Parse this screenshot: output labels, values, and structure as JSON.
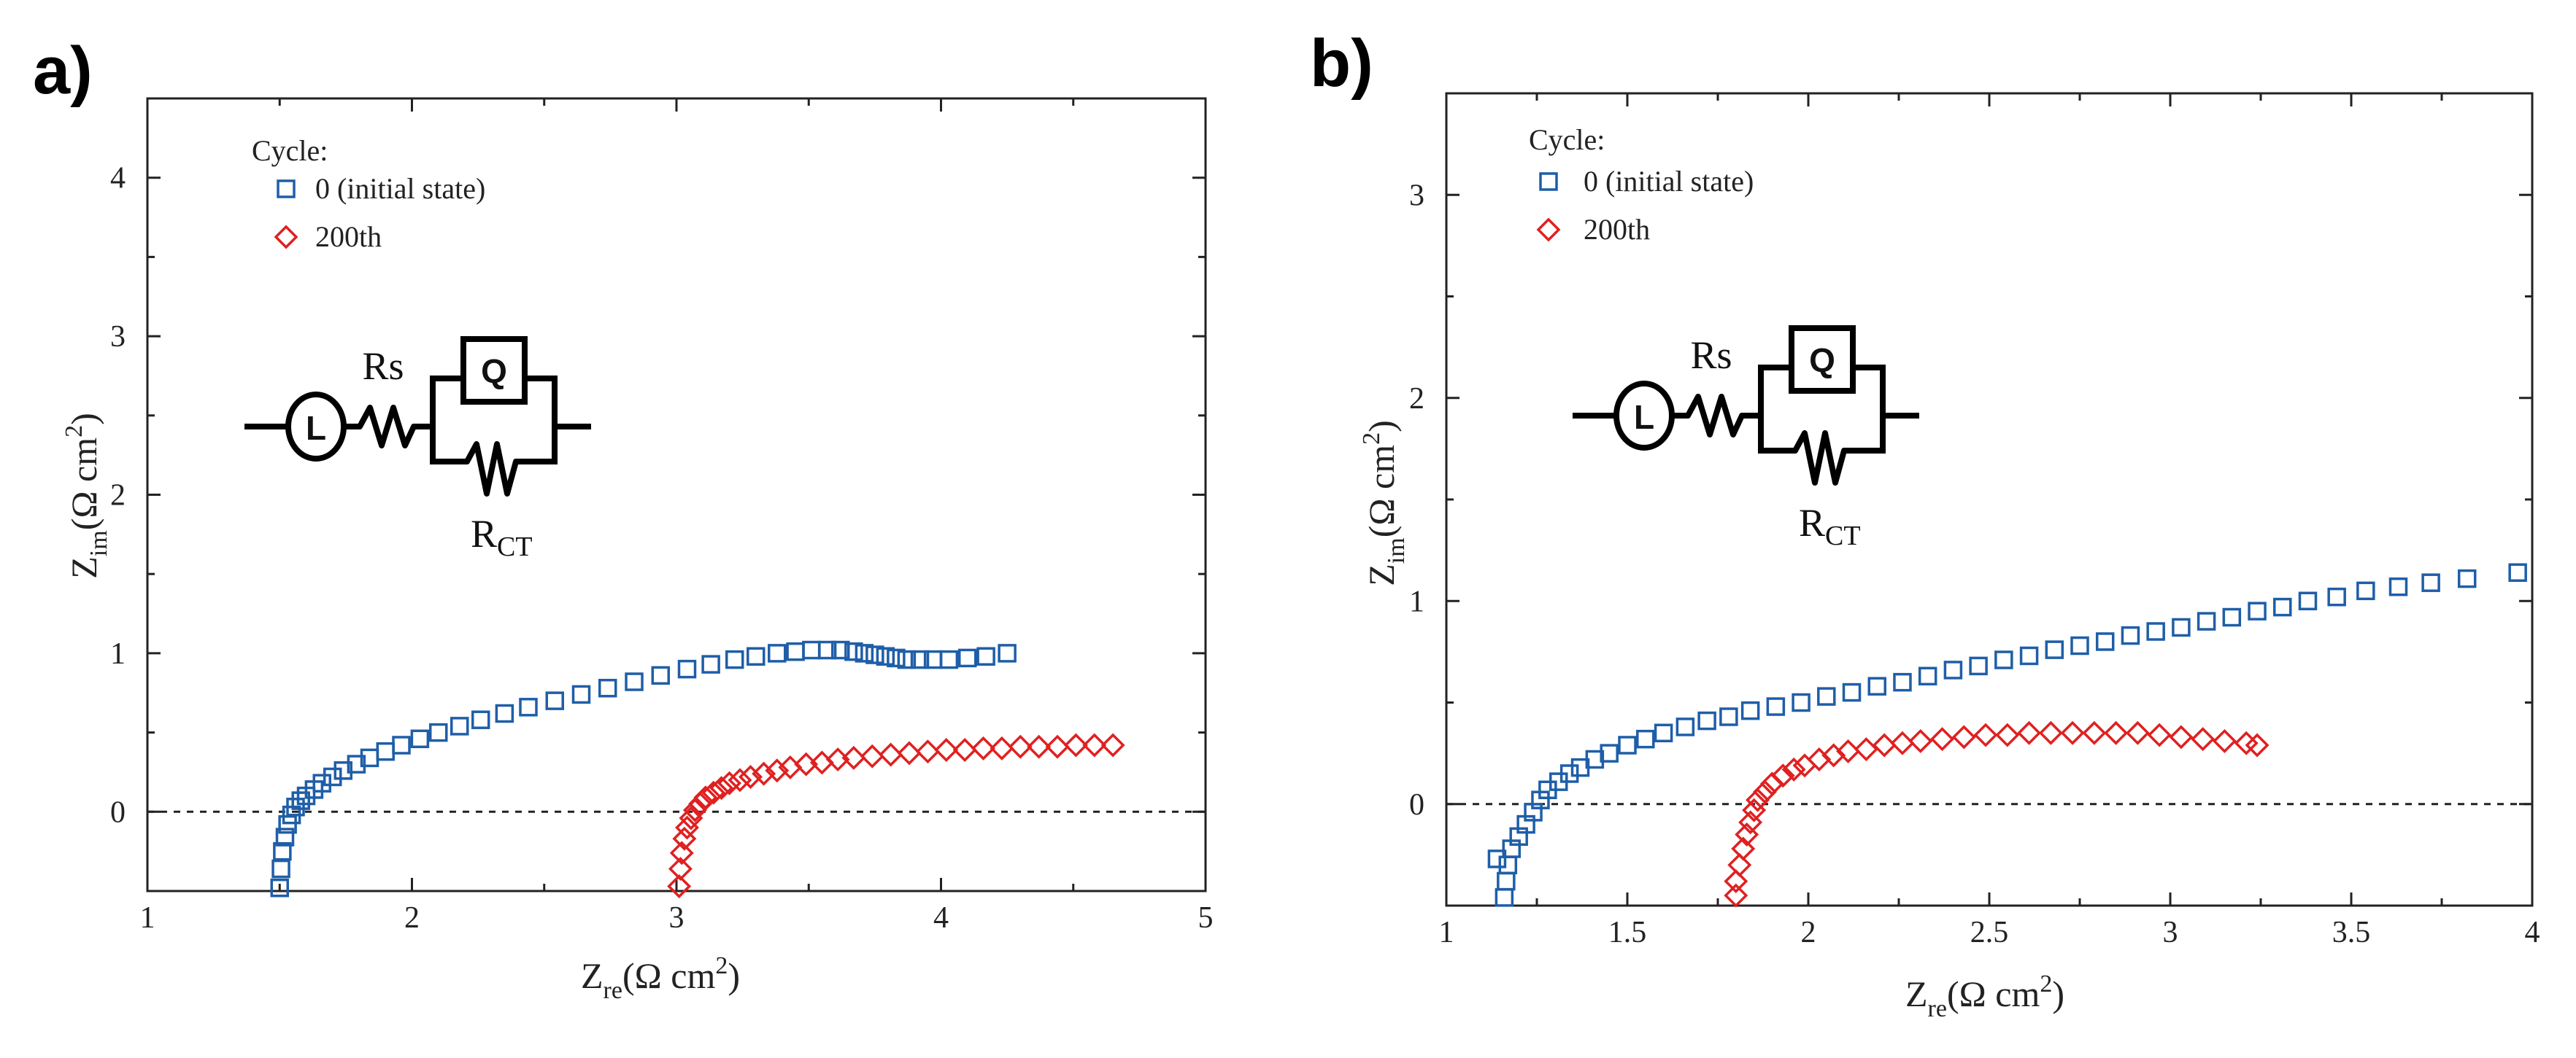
{
  "chart_data": [
    {
      "type": "scatter",
      "panel_label": "a)",
      "legend_title": "Cycle:",
      "xlabel": {
        "main": "Z",
        "sub": "re",
        "units": "(Ω cm",
        "sup": "2",
        "close": ")"
      },
      "ylabel": {
        "main": "Z",
        "sub": "im",
        "units": "(Ω cm",
        "sup": "2",
        "close": ")"
      },
      "xlim": [
        1,
        5
      ],
      "ylim": [
        -0.5,
        4.5
      ],
      "xticks": [
        1,
        2,
        3,
        4,
        5
      ],
      "xtick_labels": [
        "1",
        "2",
        "3",
        "4",
        "5"
      ],
      "yticks": [
        0,
        1,
        2,
        3,
        4
      ],
      "ytick_labels": [
        "0",
        "1",
        "2",
        "3",
        "4"
      ],
      "zero_line": true,
      "circuit": {
        "inductor": "L",
        "cpe": "Q",
        "rs": "Rs",
        "rct_main": "R",
        "rct_sub": "CT"
      },
      "series": [
        {
          "name": "0 (initial state)",
          "marker": "square",
          "color": "#1f5ea8",
          "points": [
            [
              1.5,
              -0.48
            ],
            [
              1.505,
              -0.36
            ],
            [
              1.51,
              -0.25
            ],
            [
              1.52,
              -0.16
            ],
            [
              1.53,
              -0.08
            ],
            [
              1.545,
              -0.02
            ],
            [
              1.56,
              0.03
            ],
            [
              1.58,
              0.07
            ],
            [
              1.6,
              0.1
            ],
            [
              1.63,
              0.14
            ],
            [
              1.66,
              0.18
            ],
            [
              1.7,
              0.22
            ],
            [
              1.74,
              0.26
            ],
            [
              1.79,
              0.3
            ],
            [
              1.84,
              0.34
            ],
            [
              1.9,
              0.38
            ],
            [
              1.96,
              0.42
            ],
            [
              2.03,
              0.46
            ],
            [
              2.1,
              0.5
            ],
            [
              2.18,
              0.54
            ],
            [
              2.26,
              0.58
            ],
            [
              2.35,
              0.62
            ],
            [
              2.44,
              0.66
            ],
            [
              2.54,
              0.7
            ],
            [
              2.64,
              0.74
            ],
            [
              2.74,
              0.78
            ],
            [
              2.84,
              0.82
            ],
            [
              2.94,
              0.86
            ],
            [
              3.04,
              0.9
            ],
            [
              3.13,
              0.93
            ],
            [
              3.22,
              0.96
            ],
            [
              3.3,
              0.98
            ],
            [
              3.38,
              1.0
            ],
            [
              3.45,
              1.01
            ],
            [
              3.51,
              1.02
            ],
            [
              3.57,
              1.02
            ],
            [
              3.62,
              1.02
            ],
            [
              3.67,
              1.01
            ],
            [
              3.71,
              1.0
            ],
            [
              3.75,
              0.99
            ],
            [
              3.79,
              0.98
            ],
            [
              3.83,
              0.97
            ],
            [
              3.87,
              0.96
            ],
            [
              3.92,
              0.96
            ],
            [
              3.97,
              0.96
            ],
            [
              4.03,
              0.96
            ],
            [
              4.1,
              0.97
            ],
            [
              4.17,
              0.98
            ],
            [
              4.25,
              1.0
            ]
          ]
        },
        {
          "name": "200th",
          "marker": "diamond",
          "color": "#e02020",
          "points": [
            [
              3.01,
              -0.47
            ],
            [
              3.015,
              -0.36
            ],
            [
              3.02,
              -0.26
            ],
            [
              3.03,
              -0.17
            ],
            [
              3.04,
              -0.1
            ],
            [
              3.055,
              -0.04
            ],
            [
              3.07,
              0.01
            ],
            [
              3.09,
              0.05
            ],
            [
              3.11,
              0.09
            ],
            [
              3.14,
              0.12
            ],
            [
              3.17,
              0.15
            ],
            [
              3.2,
              0.18
            ],
            [
              3.24,
              0.2
            ],
            [
              3.28,
              0.22
            ],
            [
              3.33,
              0.24
            ],
            [
              3.38,
              0.26
            ],
            [
              3.43,
              0.28
            ],
            [
              3.49,
              0.3
            ],
            [
              3.55,
              0.31
            ],
            [
              3.61,
              0.33
            ],
            [
              3.67,
              0.34
            ],
            [
              3.74,
              0.35
            ],
            [
              3.81,
              0.36
            ],
            [
              3.88,
              0.37
            ],
            [
              3.95,
              0.38
            ],
            [
              4.02,
              0.39
            ],
            [
              4.09,
              0.39
            ],
            [
              4.16,
              0.4
            ],
            [
              4.23,
              0.4
            ],
            [
              4.3,
              0.41
            ],
            [
              4.37,
              0.41
            ],
            [
              4.44,
              0.41
            ],
            [
              4.51,
              0.42
            ],
            [
              4.58,
              0.42
            ],
            [
              4.65,
              0.42
            ]
          ]
        }
      ]
    },
    {
      "type": "scatter",
      "panel_label": "b)",
      "legend_title": "Cycle:",
      "xlabel": {
        "main": "Z",
        "sub": "re",
        "units": "(Ω cm",
        "sup": "2",
        "close": ")"
      },
      "ylabel": {
        "main": "Z",
        "sub": "im",
        "units": "(Ω cm",
        "sup": "2",
        "close": ")"
      },
      "xlim": [
        1,
        4
      ],
      "ylim": [
        -0.5,
        3.5
      ],
      "xticks": [
        1,
        1.5,
        2,
        2.5,
        3,
        3.5,
        4
      ],
      "xtick_labels": [
        "1",
        "1.5",
        "2",
        "2.5",
        "3",
        "3.5",
        "4"
      ],
      "yticks": [
        0,
        1,
        2,
        3
      ],
      "ytick_labels": [
        "0",
        "1",
        "2",
        "3"
      ],
      "zero_line": true,
      "circuit": {
        "inductor": "L",
        "cpe": "Q",
        "rs": "Rs",
        "rct_main": "R",
        "rct_sub": "CT"
      },
      "series": [
        {
          "name": "0 (initial state)",
          "marker": "square",
          "color": "#1f5ea8",
          "points": [
            [
              1.16,
              -0.46
            ],
            [
              1.165,
              -0.38
            ],
            [
              1.17,
              -0.3
            ],
            [
              1.14,
              -0.27
            ],
            [
              1.18,
              -0.22
            ],
            [
              1.2,
              -0.16
            ],
            [
              1.22,
              -0.1
            ],
            [
              1.24,
              -0.04
            ],
            [
              1.26,
              0.02
            ],
            [
              1.28,
              0.07
            ],
            [
              1.31,
              0.11
            ],
            [
              1.34,
              0.15
            ],
            [
              1.37,
              0.18
            ],
            [
              1.41,
              0.22
            ],
            [
              1.45,
              0.25
            ],
            [
              1.5,
              0.29
            ],
            [
              1.55,
              0.32
            ],
            [
              1.6,
              0.35
            ],
            [
              1.66,
              0.38
            ],
            [
              1.72,
              0.41
            ],
            [
              1.78,
              0.43
            ],
            [
              1.84,
              0.46
            ],
            [
              1.91,
              0.48
            ],
            [
              1.98,
              0.5
            ],
            [
              2.05,
              0.53
            ],
            [
              2.12,
              0.55
            ],
            [
              2.19,
              0.58
            ],
            [
              2.26,
              0.6
            ],
            [
              2.33,
              0.63
            ],
            [
              2.4,
              0.66
            ],
            [
              2.47,
              0.68
            ],
            [
              2.54,
              0.71
            ],
            [
              2.61,
              0.73
            ],
            [
              2.68,
              0.76
            ],
            [
              2.75,
              0.78
            ],
            [
              2.82,
              0.8
            ],
            [
              2.89,
              0.83
            ],
            [
              2.96,
              0.85
            ],
            [
              3.03,
              0.87
            ],
            [
              3.1,
              0.9
            ],
            [
              3.17,
              0.92
            ],
            [
              3.24,
              0.95
            ],
            [
              3.31,
              0.97
            ],
            [
              3.38,
              1.0
            ],
            [
              3.46,
              1.02
            ],
            [
              3.54,
              1.05
            ],
            [
              3.63,
              1.07
            ],
            [
              3.72,
              1.09
            ],
            [
              3.82,
              1.11
            ],
            [
              3.96,
              1.14
            ]
          ]
        },
        {
          "name": "200th",
          "marker": "diamond",
          "color": "#e02020",
          "points": [
            [
              1.8,
              -0.45
            ],
            [
              1.8,
              -0.38
            ],
            [
              1.81,
              -0.3
            ],
            [
              1.82,
              -0.22
            ],
            [
              1.83,
              -0.15
            ],
            [
              1.84,
              -0.09
            ],
            [
              1.85,
              -0.03
            ],
            [
              1.86,
              0.02
            ],
            [
              1.88,
              0.06
            ],
            [
              1.9,
              0.1
            ],
            [
              1.93,
              0.14
            ],
            [
              1.96,
              0.17
            ],
            [
              1.99,
              0.19
            ],
            [
              2.03,
              0.22
            ],
            [
              2.07,
              0.24
            ],
            [
              2.11,
              0.26
            ],
            [
              2.16,
              0.27
            ],
            [
              2.21,
              0.29
            ],
            [
              2.26,
              0.3
            ],
            [
              2.31,
              0.31
            ],
            [
              2.37,
              0.32
            ],
            [
              2.43,
              0.33
            ],
            [
              2.49,
              0.34
            ],
            [
              2.55,
              0.34
            ],
            [
              2.61,
              0.35
            ],
            [
              2.67,
              0.35
            ],
            [
              2.73,
              0.35
            ],
            [
              2.79,
              0.35
            ],
            [
              2.85,
              0.35
            ],
            [
              2.91,
              0.35
            ],
            [
              2.97,
              0.34
            ],
            [
              3.03,
              0.33
            ],
            [
              3.09,
              0.32
            ],
            [
              3.15,
              0.31
            ],
            [
              3.21,
              0.3
            ],
            [
              3.24,
              0.29
            ]
          ]
        }
      ]
    }
  ]
}
